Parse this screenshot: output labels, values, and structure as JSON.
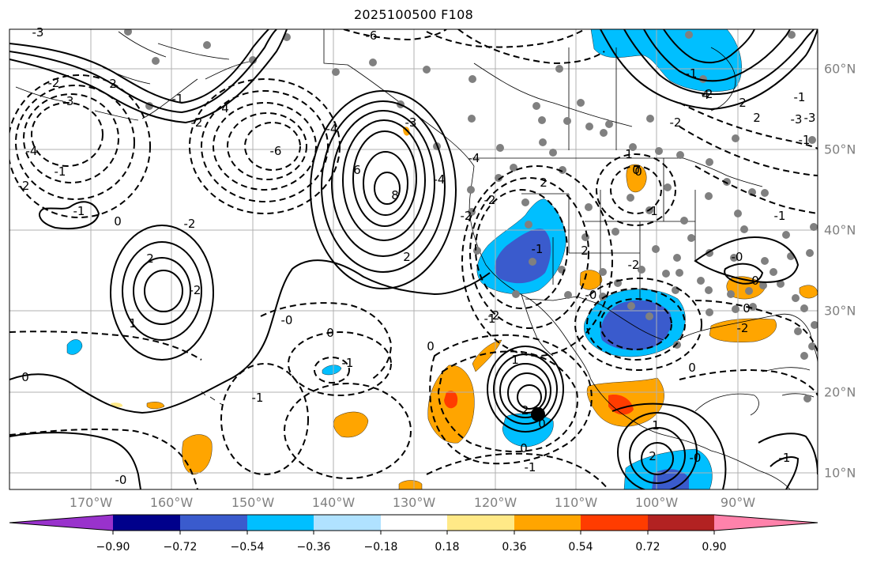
{
  "title": "2025100500 F108",
  "lon_labels": [
    "170°W",
    "160°W",
    "150°W",
    "140°W",
    "130°W",
    "120°W",
    "110°W",
    "100°W",
    "90°W"
  ],
  "lat_labels": [
    "60°N",
    "50°N",
    "40°N",
    "30°N",
    "20°N",
    "10°N"
  ],
  "colorbar": {
    "tick_labels": [
      "−0.90",
      "−0.72",
      "−0.54",
      "−0.36",
      "−0.18",
      "0.18",
      "0.36",
      "0.54",
      "0.72",
      "0.90"
    ],
    "colors": [
      "#9932cc",
      "#00008b",
      "#3a5bcd",
      "#00bfff",
      "#b0e2ff",
      "#ffffff",
      "#ffe987",
      "#ffa500",
      "#ff3c00",
      "#b22222",
      "#ff82ab"
    ]
  },
  "contour_labels": [
    "-6",
    "-3",
    "-2",
    "-2",
    "-4",
    "-3",
    "2",
    "-1",
    "-2",
    "4",
    "-6",
    "0",
    "-1",
    "-2",
    "6",
    "8",
    "-4",
    "2",
    "-2",
    "2",
    "1",
    "-2",
    "0",
    "-4",
    "-3",
    "2",
    "0",
    "1",
    "-1",
    "0",
    "0",
    "-0",
    "-1",
    "-0",
    "-1",
    "1",
    "-2",
    "-1",
    "2",
    "0",
    "0",
    "-0",
    "0",
    "-0",
    "1",
    "-2",
    "2",
    "-1",
    "-2",
    "1",
    "-2",
    "2",
    "-0",
    "-2",
    "0",
    "-1",
    "0",
    "-1",
    "2",
    "-1",
    "-3",
    "-1",
    "0",
    "-2",
    "4",
    "-1",
    "-4",
    "-1",
    "-3",
    "-2"
  ]
}
